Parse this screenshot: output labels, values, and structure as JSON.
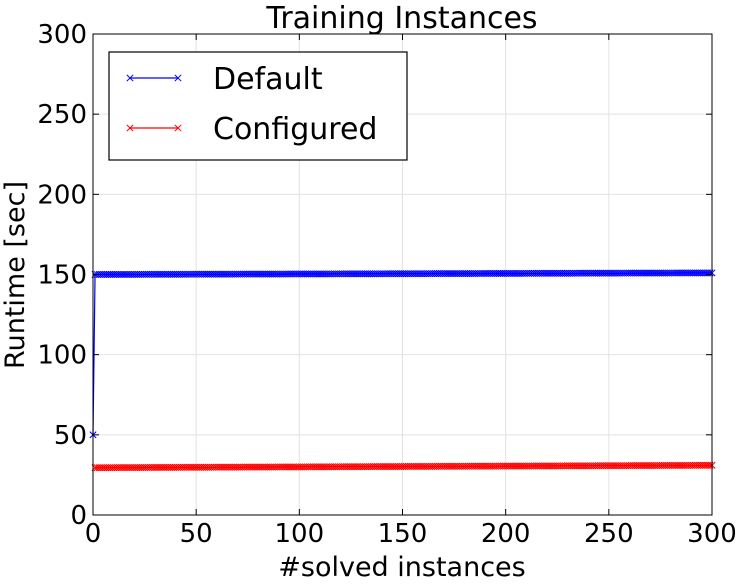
{
  "chart_data": {
    "type": "line",
    "title": "Training Instances",
    "xlabel": "#solved instances",
    "ylabel": "Runtime [sec]",
    "xlim": [
      0,
      300
    ],
    "ylim": [
      0,
      300
    ],
    "xticks": [
      0,
      50,
      100,
      150,
      200,
      250,
      300
    ],
    "yticks": [
      0,
      50,
      100,
      150,
      200,
      250,
      300
    ],
    "grid": true,
    "legend_position": "top-left",
    "marker": "x",
    "series": [
      {
        "name": "Default",
        "color": "#0000ff",
        "x_start": 1,
        "x_end": 300,
        "first_point": [
          0,
          50
        ],
        "values_summary": "rises from about 50 at x=0 to about 150 at x=1, then stays at about 150",
        "y_start": 150,
        "y_end": 151
      },
      {
        "name": "Configured",
        "color": "#ff0000",
        "x_start": 1,
        "x_end": 300,
        "values_summary": "about 30 at x=1, stays about 30-31 through x=300",
        "y_start": 29.5,
        "y_end": 31
      }
    ]
  }
}
